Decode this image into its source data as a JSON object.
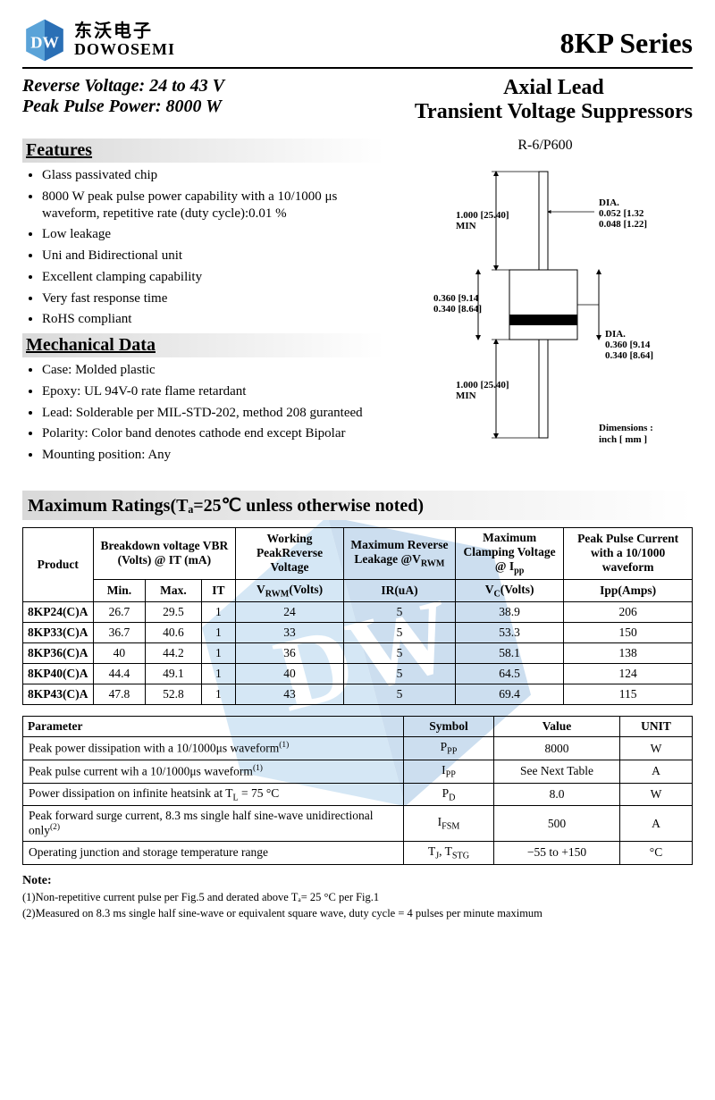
{
  "logo": {
    "cn": "东沃电子",
    "en": "DOWOSEMI",
    "brand_color": "#2a6fb5"
  },
  "series": "8KP Series",
  "spec1": "Reverse Voltage: 24 to 43 V",
  "spec2": "Peak Pulse Power: 8000 W",
  "product_title_1": "Axial Lead",
  "product_title_2": "Transient Voltage Suppressors",
  "package_label": "R-6/P600",
  "features_heading": "Features",
  "features": [
    "Glass passivated chip",
    "8000 W peak pulse power capability with a 10/1000 μs waveform, repetitive rate (duty cycle):0.01 %",
    "Low leakage",
    "Uni and Bidirectional unit",
    "Excellent clamping capability",
    "Very fast response time",
    "RoHS compliant"
  ],
  "mechdata_heading": "Mechanical Data",
  "mechdata": [
    "Case: Molded plastic",
    "Epoxy: UL 94V-0 rate flame retardant",
    "Lead: Solderable per MIL-STD-202, method 208 guranteed",
    "Polarity: Color band denotes cathode end except Bipolar",
    "Mounting position: Any"
  ],
  "diagram": {
    "lead_len": "1.000 [25.40]",
    "lead_note": "MIN",
    "dia_lead_1": "0.052",
    "dia_lead_mm_1": "1.32",
    "dia_lead_2": "0.048",
    "dia_lead_mm_2": "1.22",
    "body_h_1": "0.360",
    "body_h_mm_1": "9.14",
    "body_h_2": "0.340",
    "body_h_mm_2": "8.64",
    "body_w_1": "0.360",
    "body_w_mm_1": "9.14",
    "body_w_2": "0.340",
    "body_w_mm_2": "8.64",
    "dim_label": "Dimensions :",
    "dim_units": "inch [ mm ]"
  },
  "ratings_heading": "Maximum Ratings(Tₐ=25℃ unless otherwise noted)",
  "ratings_table": {
    "headers": {
      "product": "Product",
      "vbr": "Breakdown voltage VBR (Volts) @ IT (mA)",
      "vrwm": "Working PeakReverse Voltage",
      "ir": "Maximum Reverse Leakage @V",
      "vc": "Maximum Clamping Voltage @ I",
      "ipp": "Peak Pulse Current with a 10/1000 waveform",
      "sub": {
        "min": "Min.",
        "max": "Max.",
        "it": "IT",
        "vrwm": "V",
        "ir": "IR(uA)",
        "vc": "V",
        "ipp": "Ipp(Amps)"
      }
    },
    "rows": [
      {
        "product": "8KP24(C)A",
        "min": "26.7",
        "max": "29.5",
        "it": "1",
        "vrwm": "24",
        "ir": "5",
        "vc": "38.9",
        "ipp": "206"
      },
      {
        "product": "8KP33(C)A",
        "min": "36.7",
        "max": "40.6",
        "it": "1",
        "vrwm": "33",
        "ir": "5",
        "vc": "53.3",
        "ipp": "150"
      },
      {
        "product": "8KP36(C)A",
        "min": "40",
        "max": "44.2",
        "it": "1",
        "vrwm": "36",
        "ir": "5",
        "vc": "58.1",
        "ipp": "138"
      },
      {
        "product": "8KP40(C)A",
        "min": "44.4",
        "max": "49.1",
        "it": "1",
        "vrwm": "40",
        "ir": "5",
        "vc": "64.5",
        "ipp": "124"
      },
      {
        "product": "8KP43(C)A",
        "min": "47.8",
        "max": "52.8",
        "it": "1",
        "vrwm": "43",
        "ir": "5",
        "vc": "69.4",
        "ipp": "115"
      }
    ]
  },
  "param_table": {
    "headers": {
      "param": "Parameter",
      "symbol": "Symbol",
      "value": "Value",
      "unit": "UNIT"
    },
    "rows": [
      {
        "param": "Peak power dissipation with a 10/1000μs waveform",
        "note": "(1)",
        "symbol": "P",
        "sub": "PP",
        "value": "8000",
        "unit": "W"
      },
      {
        "param": "Peak pulse current wih a 10/1000μs waveform",
        "note": "(1)",
        "symbol": "I",
        "sub": "PP",
        "value": "See Next Table",
        "unit": "A"
      },
      {
        "param": "Power dissipation on infinite heatsink at T",
        "param_sub": "L",
        "param_tail": " = 75 °C",
        "symbol": "P",
        "sub": "D",
        "value": "8.0",
        "unit": "W"
      },
      {
        "param": "Peak forward surge current, 8.3 ms single half sine-wave unidirectional only",
        "note": "(2)",
        "symbol": "I",
        "sub": "FSM",
        "value": "500",
        "unit": "A"
      },
      {
        "param": "Operating junction and storage temperature range",
        "symbol": "T",
        "sub": "J",
        "symbol2": "T",
        "sub2": "STG",
        "value": "−55 to +150",
        "unit": "°C"
      }
    ]
  },
  "notes": {
    "heading": "Note:",
    "lines": [
      "(1)Non-repetitive current pulse per Fig.5 and derated above Tₐ= 25 °C per Fig.1",
      "(2)Measured on 8.3 ms single half sine-wave or equivalent square wave, duty cycle = 4 pulses per minute maximum"
    ]
  }
}
